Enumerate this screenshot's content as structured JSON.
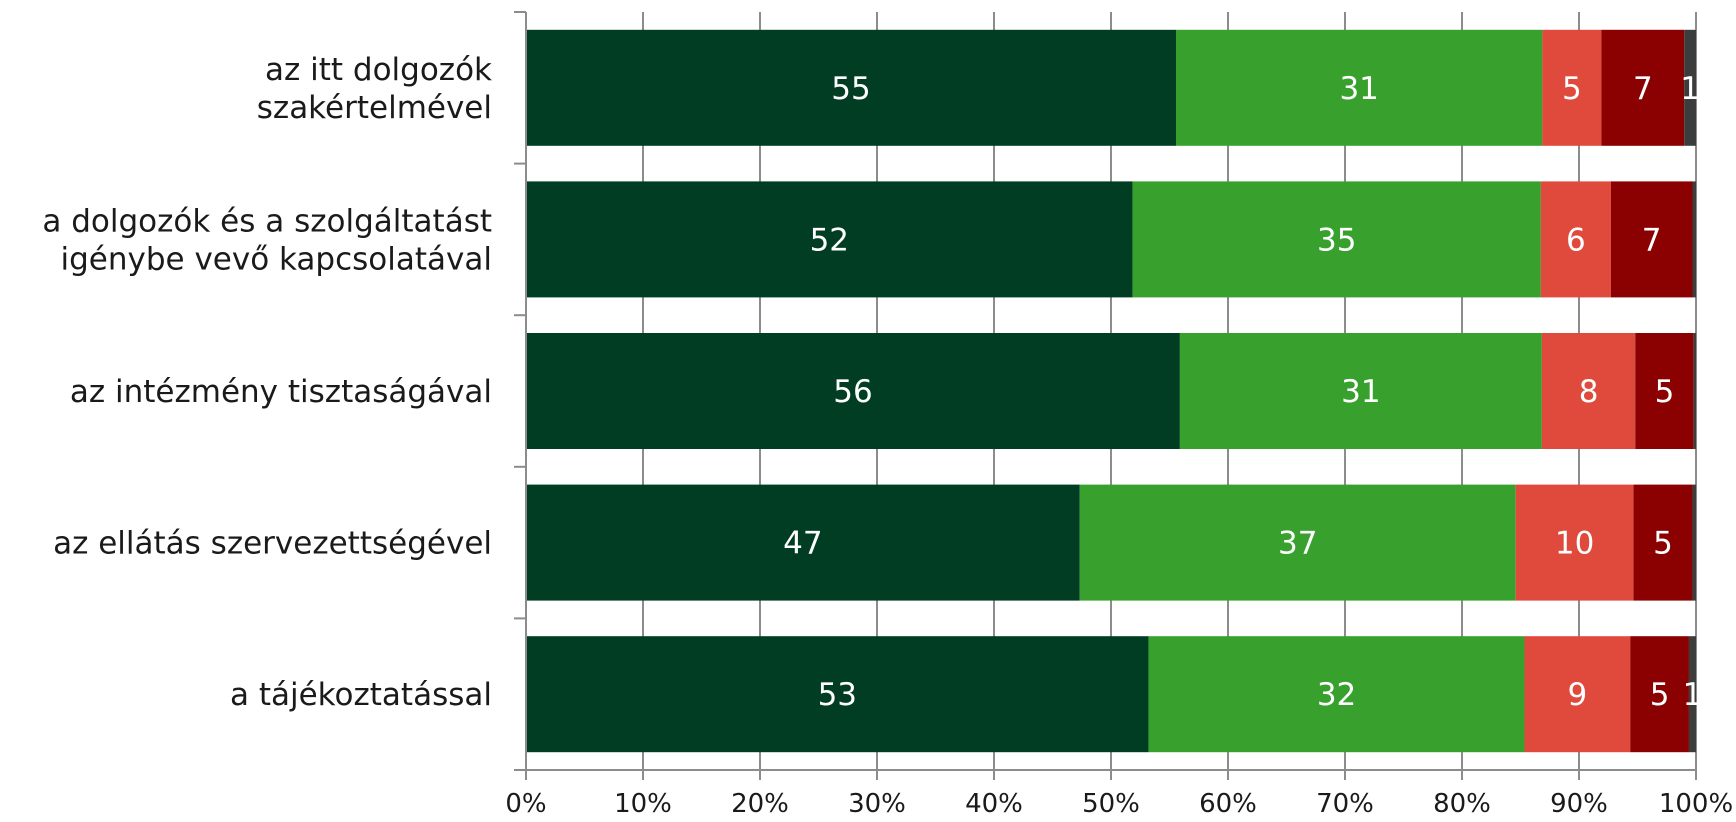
{
  "chart_data": {
    "type": "bar",
    "orientation": "horizontal",
    "stacked": "percent",
    "categories": [
      [
        "az itt dolgozók",
        "szakértelmével"
      ],
      [
        "a dolgozók és a szolgáltatást",
        "igénybe vevő kapcsolatával"
      ],
      [
        "az intézmény tisztaságával"
      ],
      [
        "az ellátás szervezettségével"
      ],
      [
        "a tájékoztatással"
      ]
    ],
    "series": [
      {
        "values": [
          55,
          52,
          56,
          47,
          53
        ],
        "color": "#003d23"
      },
      {
        "values": [
          31,
          35,
          31,
          37,
          32
        ],
        "color": "#38a12e"
      },
      {
        "values": [
          5,
          6,
          8,
          10,
          9
        ],
        "color": "#e04a3c"
      },
      {
        "values": [
          7,
          7,
          5,
          5,
          5
        ],
        "color": "#8b0000"
      },
      {
        "values": [
          1,
          0.3,
          0.2,
          0.3,
          0.6
        ],
        "color": "#3c3c3c"
      }
    ],
    "data_labels": [
      [
        "55",
        "31",
        "5",
        "7",
        "1"
      ],
      [
        "52",
        "35",
        "6",
        "7",
        ""
      ],
      [
        "56",
        "31",
        "8",
        "5",
        ""
      ],
      [
        "47",
        "37",
        "10",
        "5",
        ""
      ],
      [
        "53",
        "32",
        "9",
        "5",
        "1"
      ]
    ],
    "x_ticks": [
      "0%",
      "10%",
      "20%",
      "30%",
      "40%",
      "50%",
      "60%",
      "70%",
      "80%",
      "90%",
      "100%"
    ],
    "xlim": [
      0,
      100
    ],
    "grid": "vertical",
    "legend": "none",
    "title": "",
    "xlabel": "",
    "ylabel": ""
  }
}
